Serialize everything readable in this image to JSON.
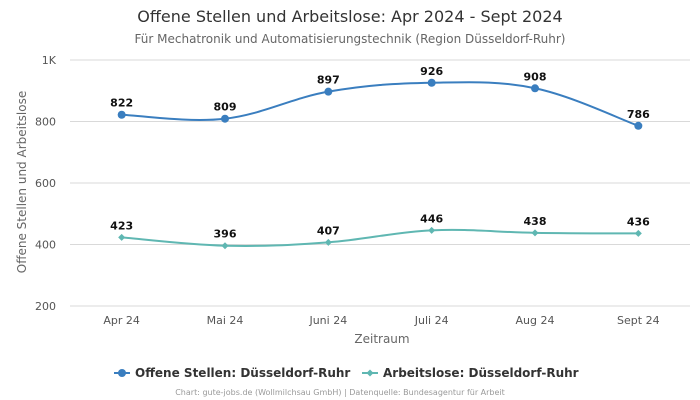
{
  "chart_data": {
    "type": "line",
    "title": "Offene Stellen und Arbeitslose: Apr 2024 - Sept 2024",
    "subtitle": "Für Mechatronik und Automatisierungstechnik (Region Düsseldorf-Ruhr)",
    "xlabel": "Zeitraum",
    "ylabel": "Offene Stellen und Arbeitslose",
    "categories": [
      "Apr 24",
      "Mai 24",
      "Juni 24",
      "Juli 24",
      "Aug 24",
      "Sept 24"
    ],
    "ylim": [
      200,
      1000
    ],
    "yticks": [
      200,
      400,
      600,
      800,
      1000
    ],
    "ytick_labels": [
      "200",
      "400",
      "600",
      "800",
      "1K"
    ],
    "grid": true,
    "legend_position": "bottom",
    "series": [
      {
        "name": "Offene Stellen: Düsseldorf-Ruhr",
        "values": [
          822,
          809,
          897,
          926,
          908,
          786
        ],
        "color": "#3a7ebf",
        "marker": "circle"
      },
      {
        "name": "Arbeitslose: Düsseldorf-Ruhr",
        "values": [
          423,
          396,
          407,
          446,
          438,
          436
        ],
        "color": "#5fb7b2",
        "marker": "diamond"
      }
    ],
    "credit": "Chart: gute-jobs.de (Wollmilchsau GmbH) | Datenquelle: Bundesagentur für Arbeit"
  }
}
